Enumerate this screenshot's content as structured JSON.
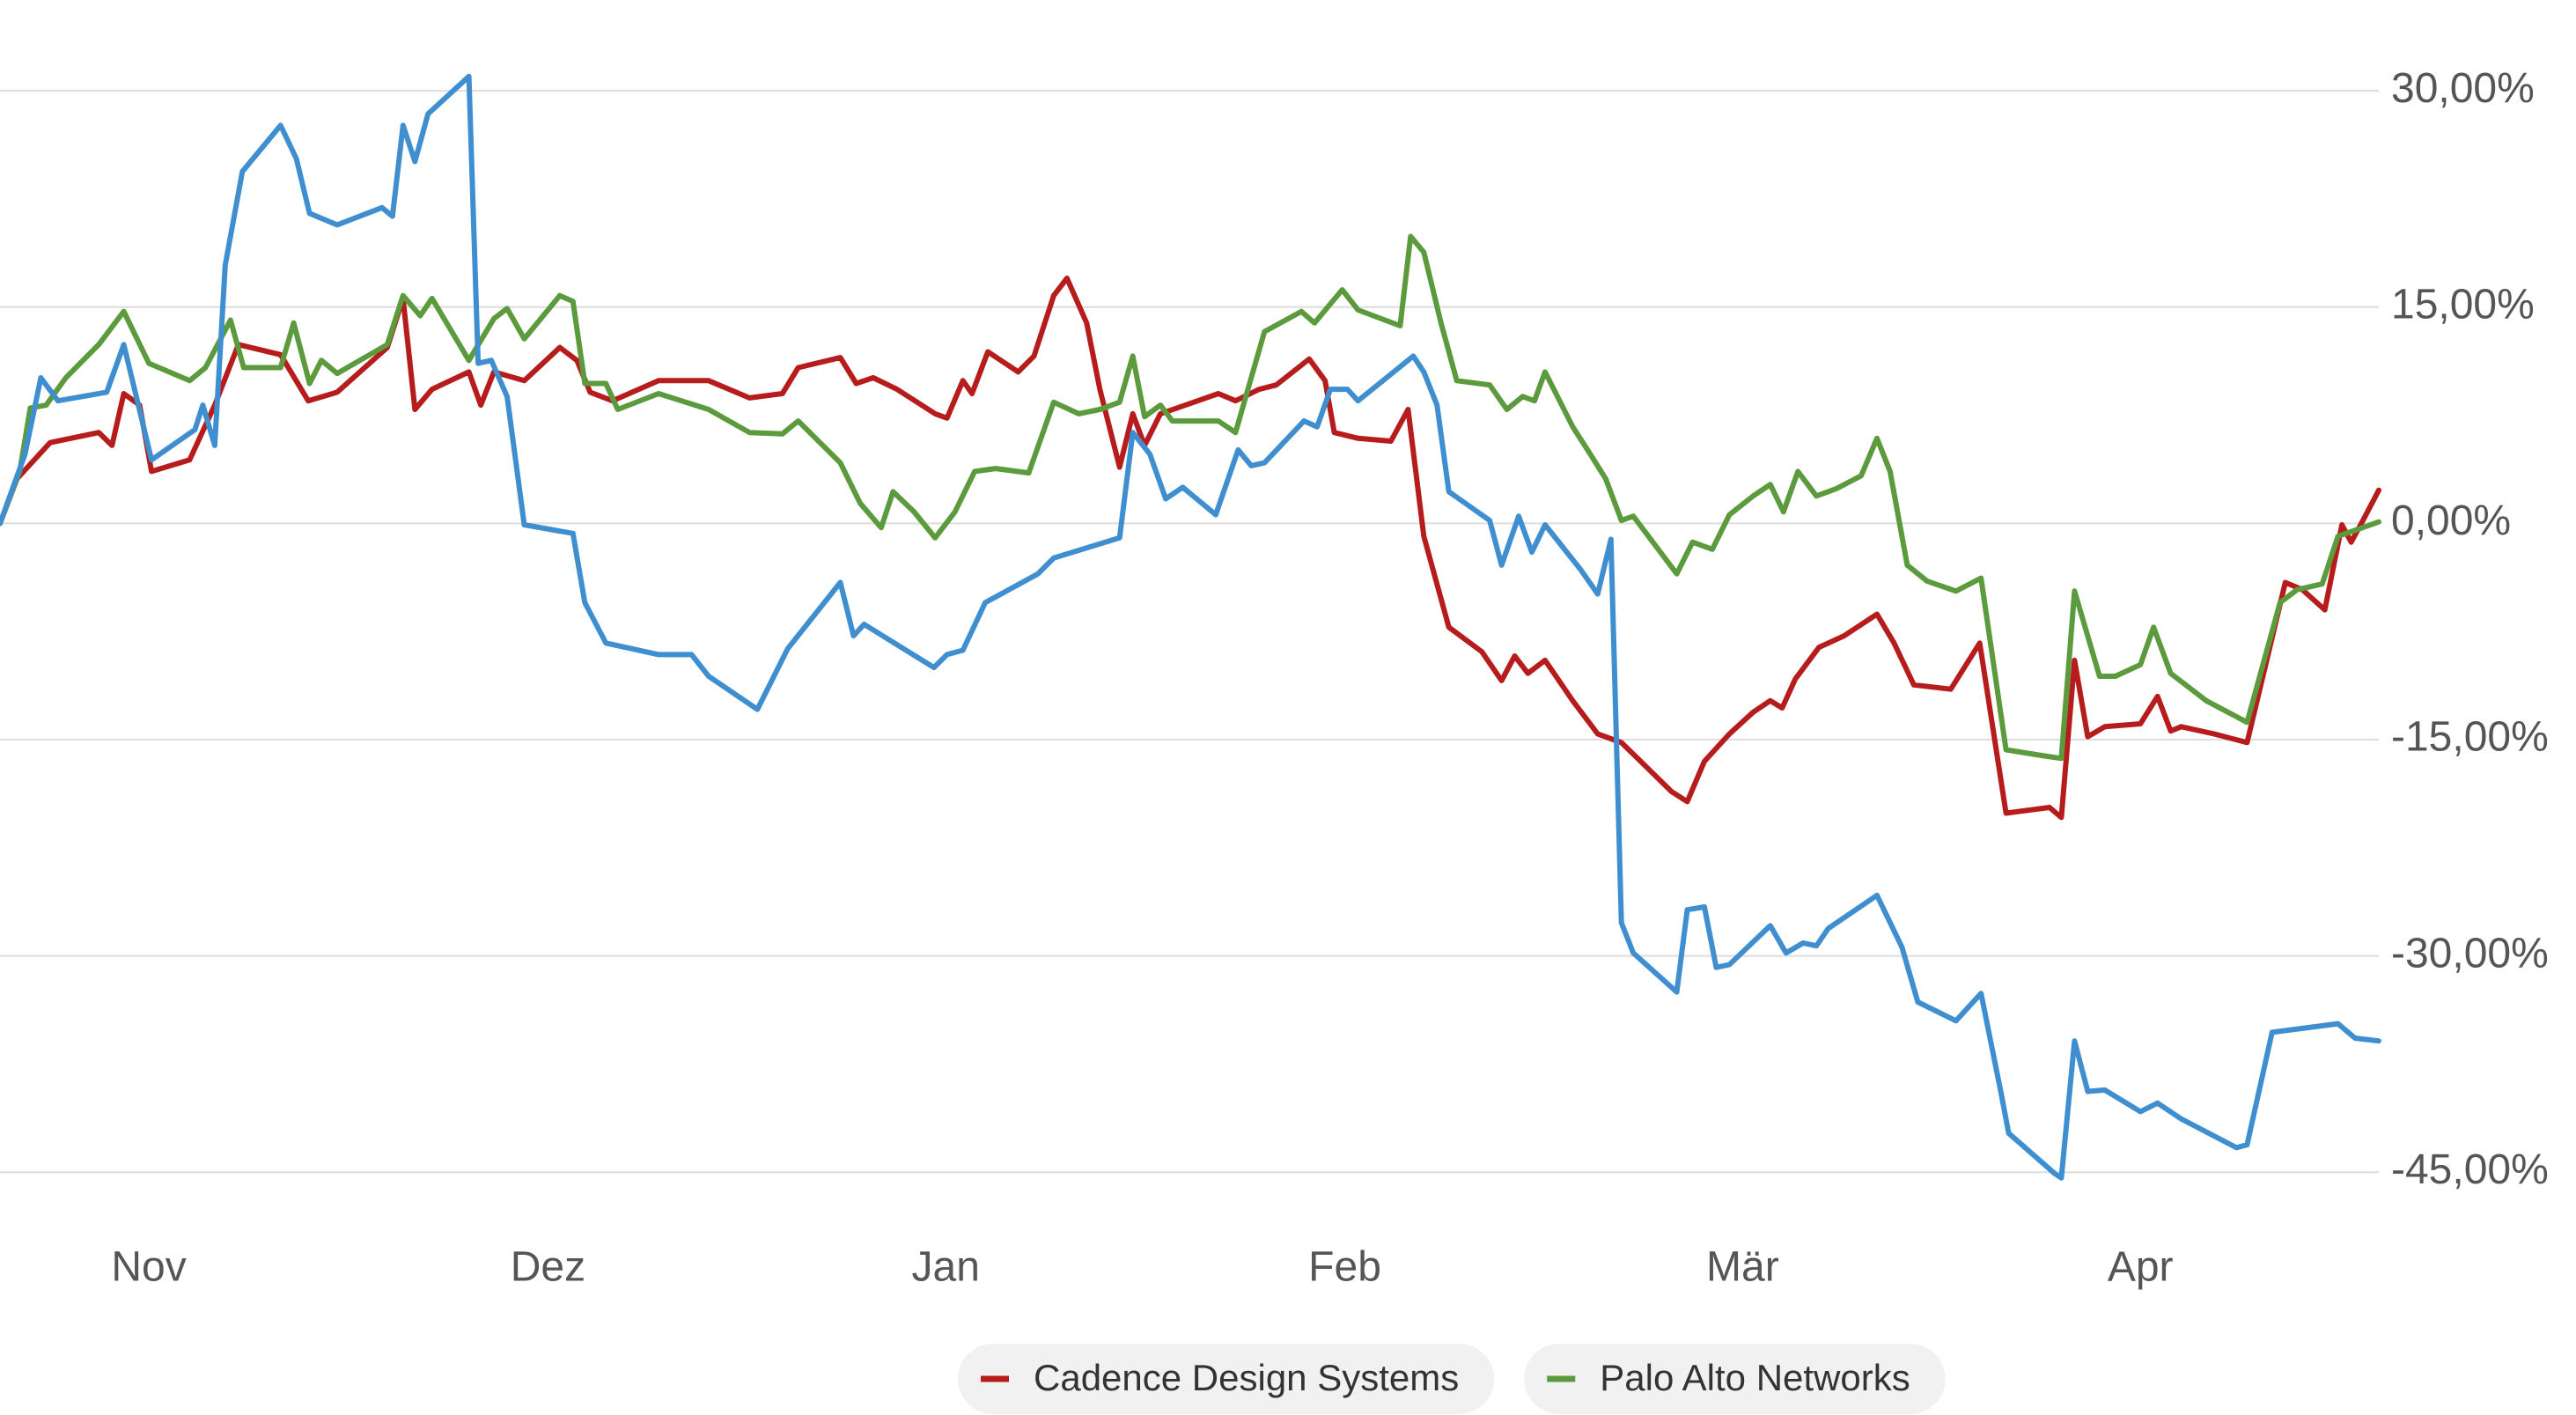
{
  "chart_data": {
    "type": "line",
    "xlim": [
      0,
      180.6
    ],
    "xticks": [
      {
        "value": 11.3,
        "label": "Nov"
      },
      {
        "value": 41.6,
        "label": "Dez"
      },
      {
        "value": 71.8,
        "label": "Jan"
      },
      {
        "value": 102.1,
        "label": "Feb"
      },
      {
        "value": 132.3,
        "label": "Mär"
      },
      {
        "value": 162.5,
        "label": "Apr"
      }
    ],
    "ylim": [
      -47,
      33
    ],
    "yticks": [
      {
        "value": 30,
        "label": "30,00%"
      },
      {
        "value": 15,
        "label": "15,00%"
      },
      {
        "value": 0,
        "label": "0,00%"
      },
      {
        "value": -15,
        "label": "-15,00%"
      },
      {
        "value": -30,
        "label": "-30,00%"
      },
      {
        "value": -45,
        "label": "-45,00%"
      }
    ],
    "grid": true,
    "legend": "bottom",
    "series": [
      {
        "name": "Cadence Design Systems",
        "color": "#b71c1c",
        "x": [
          0,
          1.3,
          3.8,
          7.5,
          8.5,
          9.4,
          10.6,
          11.5,
          14.4,
          16.3,
          18.1,
          21.3,
          23.4,
          25.6,
          29.4,
          30.6,
          31.5,
          32.8,
          35.6,
          36.5,
          37.5,
          39.8,
          42.5,
          43.8,
          44.8,
          46.5,
          50,
          53.8,
          56.9,
          59.4,
          60.6,
          63.8,
          65,
          66.3,
          68.1,
          71,
          71.9,
          73.1,
          73.8,
          75,
          77.3,
          78.5,
          80,
          81,
          82.5,
          83.5,
          85,
          86,
          86.9,
          88.1,
          90,
          92.5,
          93.8,
          95.6,
          96.9,
          99.4,
          100.6,
          101.3,
          103.1,
          105.6,
          106.9,
          108.1,
          110,
          112.5,
          114,
          115,
          116,
          117.3,
          119.4,
          121.3,
          123.1,
          125,
          126.9,
          128.1,
          129.4,
          131.3,
          133.1,
          134.4,
          135.3,
          136.3,
          138.1,
          140,
          142.5,
          143.8,
          145.3,
          148.1,
          150.3,
          152.3,
          155.6,
          156.5,
          157.5,
          158.5,
          159.8,
          162.5,
          163.8,
          164.8,
          165.6,
          168.1,
          170.6,
          173.5,
          174.8,
          176.5,
          177.8,
          178.5,
          179.4,
          180.6
        ],
        "values": [
          0,
          3.1,
          5.6,
          6.3,
          5.4,
          9,
          8.2,
          3.6,
          4.4,
          8.2,
          12.4,
          11.7,
          8.5,
          9.1,
          12.2,
          15.6,
          7.9,
          9.3,
          10.5,
          8.2,
          10.5,
          9.9,
          12.2,
          11.3,
          9.1,
          8.5,
          9.9,
          9.9,
          8.7,
          9,
          10.8,
          11.5,
          9.7,
          10.1,
          9.3,
          7.6,
          7.3,
          9.9,
          9,
          11.9,
          10.5,
          11.6,
          15.8,
          17,
          13.9,
          9.3,
          3.9,
          7.6,
          5.4,
          7.6,
          8.2,
          9,
          8.5,
          9.3,
          9.6,
          11.4,
          9.9,
          6.3,
          5.9,
          5.7,
          7.9,
          -0.9,
          -7.2,
          -8.9,
          -10.9,
          -9.2,
          -10.4,
          -9.5,
          -12.3,
          -14.6,
          -15.2,
          -16.9,
          -18.6,
          -19.3,
          -16.5,
          -14.6,
          -13.1,
          -12.3,
          -12.8,
          -10.8,
          -8.6,
          -7.8,
          -6.3,
          -8.3,
          -11.2,
          -11.5,
          -8.3,
          -20.1,
          -19.7,
          -20.4,
          -9.5,
          -14.8,
          -14.1,
          -13.9,
          -12,
          -14.4,
          -14.1,
          -14.6,
          -15.2,
          -4.1,
          -4.6,
          -6,
          -0.1,
          -1.3,
          0.2,
          2.3
        ]
      },
      {
        "name": "Palo Alto Networks",
        "color": "#5b9a3d",
        "x": [
          0,
          1.5,
          2.3,
          3.5,
          5,
          7.5,
          9.4,
          11.3,
          14.4,
          15.6,
          17.5,
          18.5,
          21.3,
          22.3,
          23.5,
          24.4,
          25.6,
          29.4,
          30.6,
          31.9,
          32.8,
          35.6,
          37.5,
          38.5,
          39.8,
          42.5,
          43.5,
          44.4,
          46,
          46.9,
          50,
          53.8,
          56.9,
          59.4,
          60.6,
          63.8,
          65.3,
          66.9,
          67.8,
          69.4,
          71,
          72.5,
          74,
          75.6,
          78.1,
          80,
          81.9,
          83.5,
          85,
          86,
          86.9,
          88.1,
          89,
          92.5,
          93.8,
          96,
          98.8,
          99.8,
          101.9,
          103.1,
          106.3,
          107.1,
          108.1,
          109.4,
          110.6,
          113.1,
          114.4,
          115.6,
          116.5,
          117.3,
          119.4,
          120.6,
          121.9,
          123.1,
          124,
          127.3,
          128.5,
          130,
          131.3,
          133.1,
          134.4,
          135.4,
          136.5,
          137.9,
          139.4,
          141.3,
          142.5,
          143.5,
          144.8,
          146.3,
          148.5,
          150.4,
          152.3,
          155,
          156.5,
          157.5,
          159.4,
          160.6,
          162.5,
          163.5,
          164.8,
          167.5,
          170.6,
          173.1,
          174.4,
          176.3,
          177.5,
          180.6
        ],
        "values": [
          0,
          3.6,
          8,
          8.2,
          10.1,
          12.4,
          14.7,
          11.1,
          9.9,
          10.8,
          14.1,
          10.8,
          10.8,
          13.9,
          9.7,
          11.3,
          10.4,
          12.4,
          15.8,
          14.4,
          15.6,
          11.3,
          14.2,
          14.9,
          12.8,
          15.8,
          15.4,
          9.7,
          9.7,
          7.9,
          9,
          7.9,
          6.3,
          6.2,
          7.1,
          4.2,
          1.4,
          -0.3,
          2.2,
          0.8,
          -1,
          0.8,
          3.6,
          3.8,
          3.5,
          8.4,
          7.6,
          7.9,
          8.4,
          11.6,
          7.4,
          8.2,
          7.1,
          7.1,
          6.3,
          13.3,
          14.7,
          13.9,
          16.2,
          14.8,
          13.7,
          19.9,
          18.8,
          13.9,
          9.9,
          9.6,
          7.9,
          8.8,
          8.5,
          10.5,
          6.7,
          5,
          3.1,
          0.2,
          0.5,
          -3.5,
          -1.3,
          -1.8,
          0.6,
          1.9,
          2.7,
          0.8,
          3.6,
          1.9,
          2.4,
          3.3,
          5.9,
          3.6,
          -2.9,
          -4,
          -4.7,
          -3.8,
          -15.7,
          -16.1,
          -16.3,
          -4.7,
          -10.6,
          -10.6,
          -9.8,
          -7.2,
          -10.4,
          -12.3,
          -13.8,
          -5.5,
          -4.6,
          -4.2,
          -0.9,
          0.1
        ]
      },
      {
        "color": "#3f8fd0",
        "x": [
          0,
          1.9,
          3.1,
          4.4,
          8.1,
          9.4,
          11.5,
          14.8,
          15.4,
          16.3,
          17.1,
          18.4,
          21.3,
          22.5,
          23.5,
          25.6,
          29,
          29.8,
          30.6,
          31.5,
          32.5,
          35.6,
          36.3,
          37.3,
          38.5,
          39.8,
          43.5,
          44.4,
          46,
          50,
          52.5,
          53.8,
          57.5,
          59.8,
          63.8,
          64.8,
          65.6,
          70.9,
          71.9,
          73.1,
          74.8,
          78.8,
          80,
          85,
          86,
          87.3,
          88.5,
          89.8,
          92.3,
          94,
          95,
          96,
          99,
          100,
          101,
          102.3,
          103.1,
          107.3,
          108.1,
          109.1,
          110,
          113.1,
          114,
          115.3,
          116.3,
          117.3,
          120,
          121.3,
          122.3,
          123.1,
          124,
          127.3,
          128.1,
          129.4,
          130.3,
          131.3,
          134.4,
          135.6,
          136.9,
          137.9,
          138.8,
          142.5,
          144.4,
          145.6,
          148.5,
          150.4,
          151.9,
          152.5,
          156,
          156.5,
          157.5,
          158.5,
          159.8,
          162.5,
          163.8,
          165.6,
          169.8,
          170.6,
          172.5,
          177.5,
          178.8,
          180.6
        ],
        "values": [
          0,
          4.8,
          10.1,
          8.5,
          9.1,
          12.4,
          4.4,
          6.5,
          8.2,
          5.4,
          17.9,
          24.4,
          27.6,
          25.3,
          21.5,
          20.7,
          21.9,
          21.3,
          27.6,
          25.1,
          28.4,
          31,
          11.1,
          11.3,
          8.8,
          -0.1,
          -0.7,
          -5.5,
          -8.3,
          -9.1,
          -9.1,
          -10.6,
          -12.9,
          -8.7,
          -4.1,
          -7.8,
          -7,
          -10,
          -9.1,
          -8.8,
          -5.5,
          -3.5,
          -2.4,
          -1,
          6.3,
          4.8,
          1.7,
          2.5,
          0.6,
          5.1,
          4,
          4.2,
          7.1,
          6.7,
          9.3,
          9.3,
          8.5,
          11.6,
          10.5,
          8.2,
          2.2,
          0.2,
          -2.9,
          0.5,
          -2,
          -0.1,
          -3.2,
          -4.9,
          -1.1,
          -27.7,
          -29.8,
          -32.5,
          -26.8,
          -26.6,
          -30.8,
          -30.6,
          -27.9,
          -29.8,
          -29.1,
          -29.3,
          -28.1,
          -25.8,
          -29.4,
          -33.2,
          -34.5,
          -32.6,
          -39.4,
          -42.3,
          -45.1,
          -45.4,
          -35.9,
          -39.4,
          -39.3,
          -40.8,
          -40.2,
          -41.3,
          -43.3,
          -43.1,
          -35.3,
          -34.7,
          -35.7,
          -35.9
        ]
      }
    ]
  }
}
